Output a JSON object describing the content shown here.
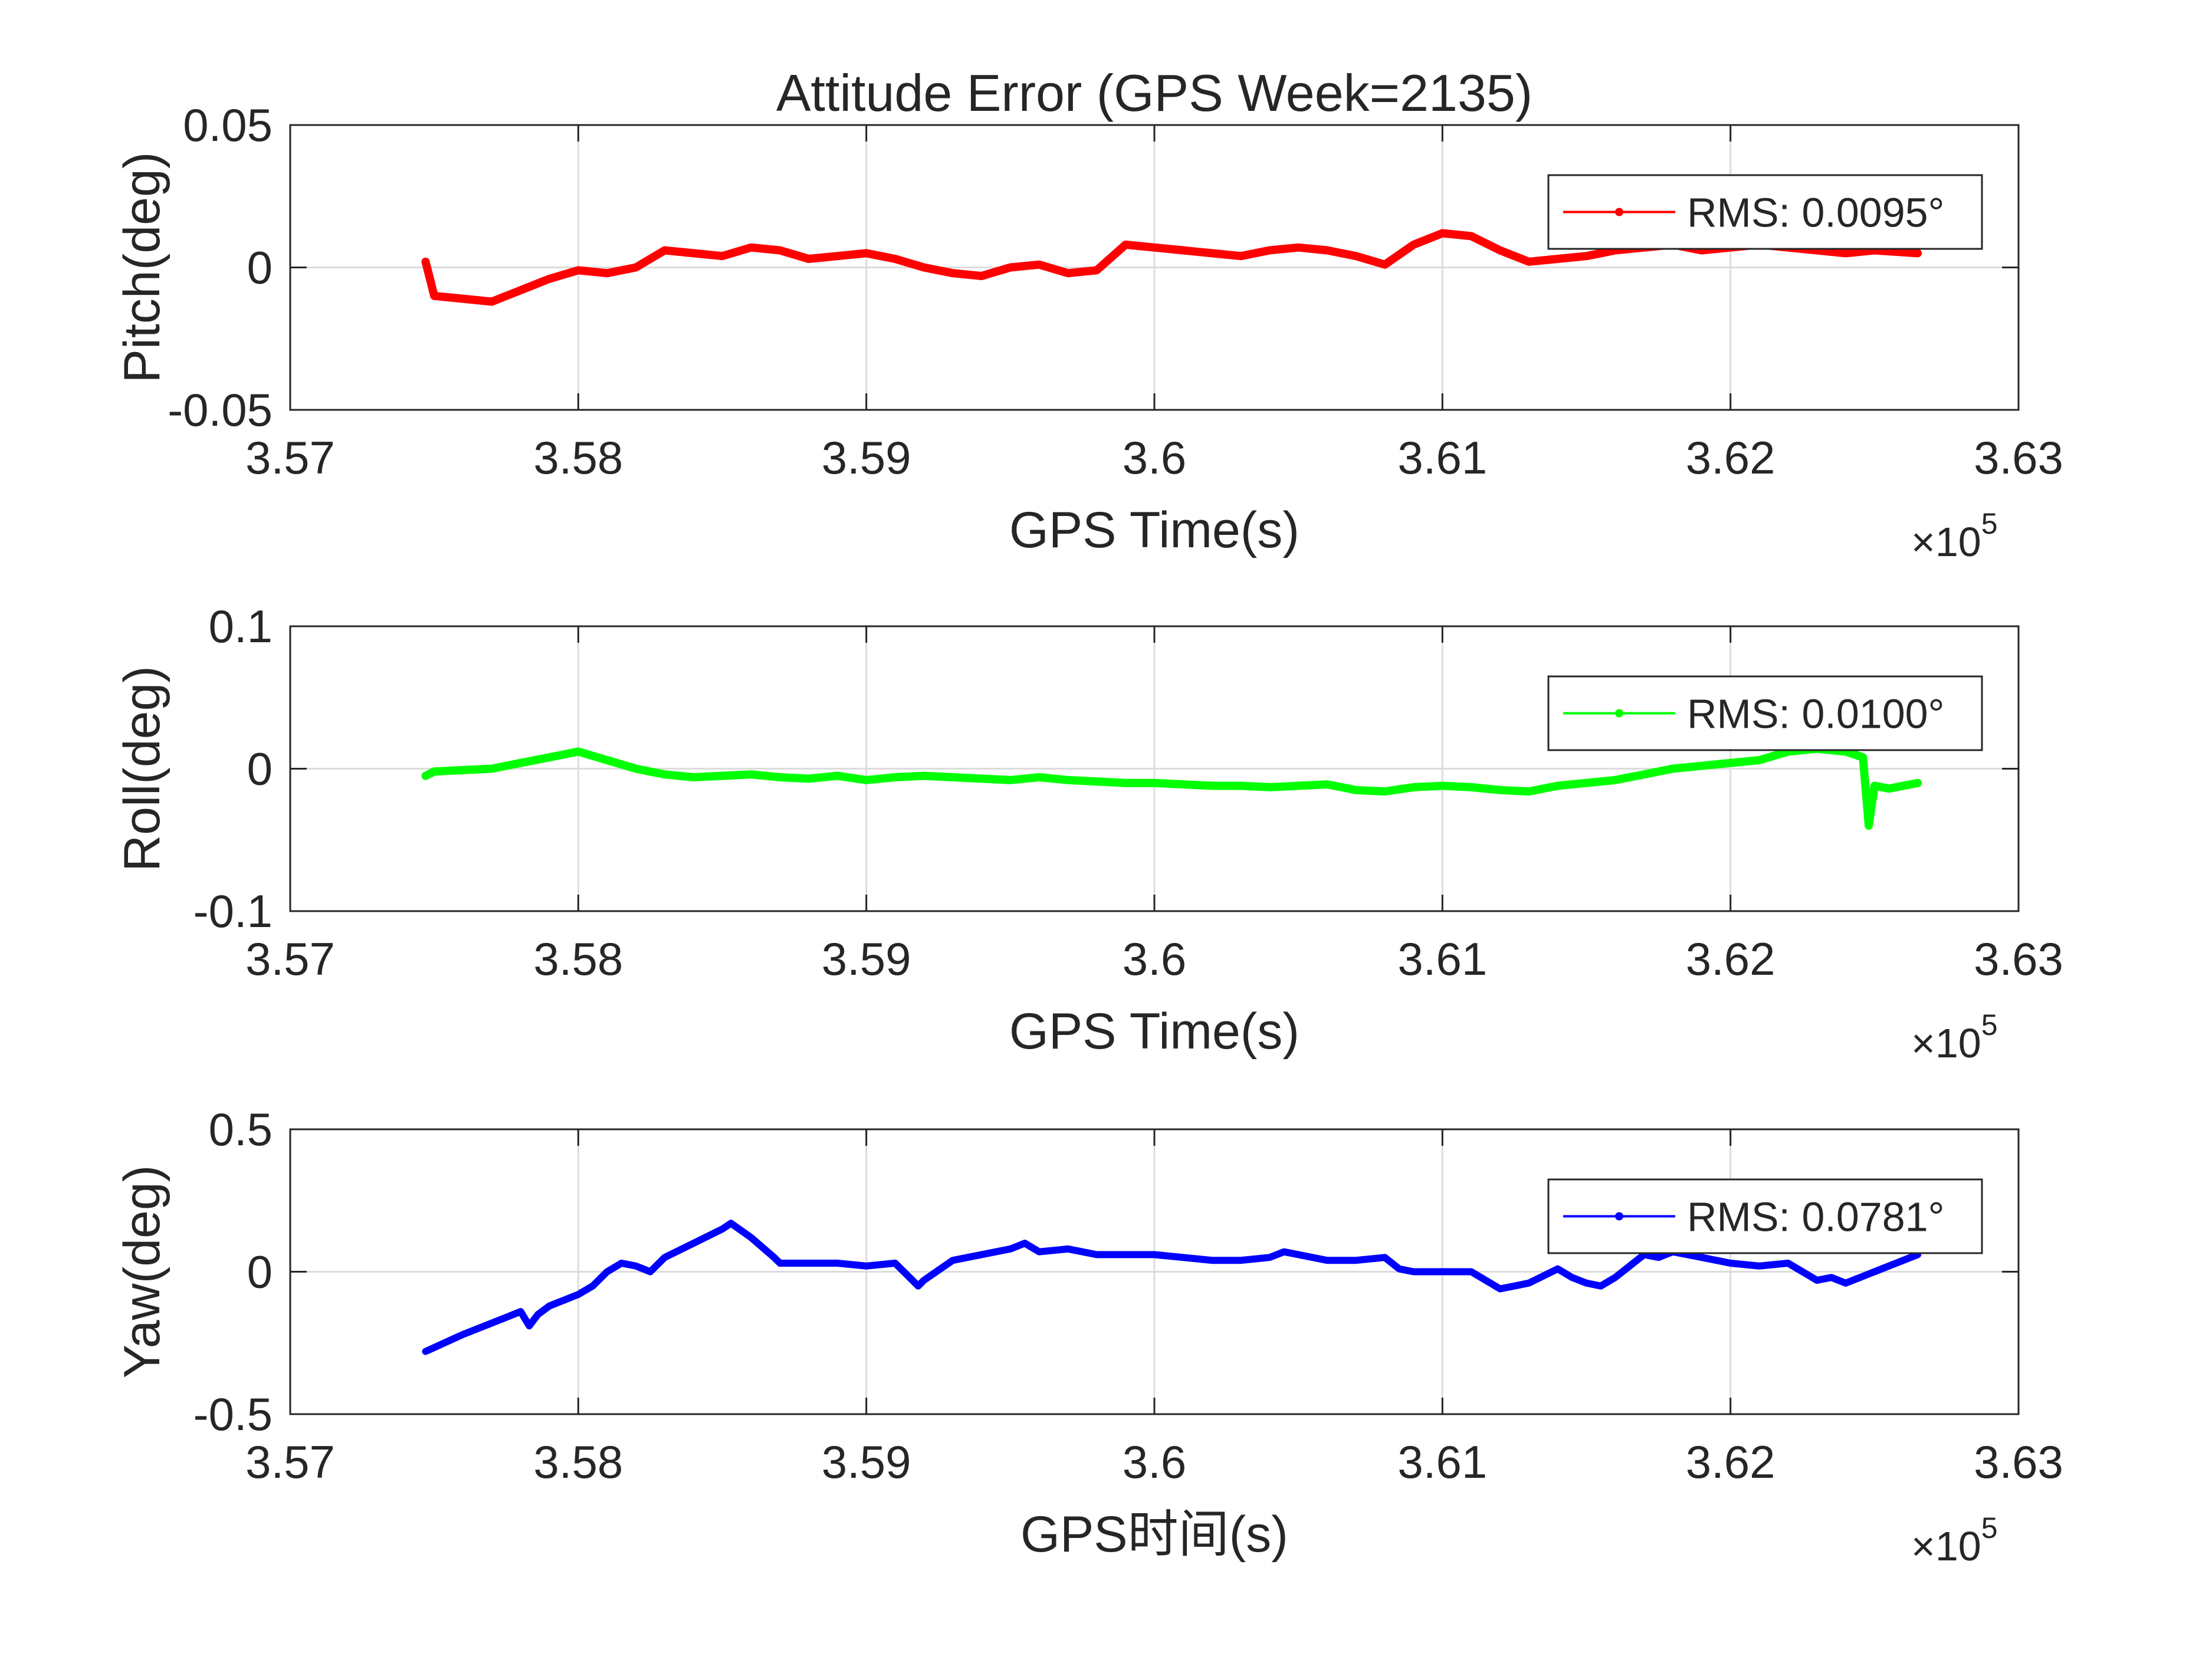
{
  "figure": {
    "title": "Attitude Error (GPS Week=2135)"
  },
  "chart_data": [
    {
      "type": "line",
      "name": "pitch",
      "ylabel": "Pitch(deg)",
      "xlabel": "GPS Time(s)",
      "xlim": [
        357000,
        363000
      ],
      "ylim": [
        -0.05,
        0.05
      ],
      "x_ticks": [
        357000,
        358000,
        359000,
        360000,
        361000,
        362000,
        363000
      ],
      "x_tick_labels": [
        "3.57",
        "3.58",
        "3.59",
        "3.6",
        "3.61",
        "3.62",
        "3.63"
      ],
      "y_ticks": [
        -0.05,
        0,
        0.05
      ],
      "y_tick_labels": [
        "-0.05",
        "0",
        "0.05"
      ],
      "x_exponent_base": "×10",
      "x_exponent_power": "5",
      "grid": true,
      "legend": {
        "text": "RMS: 0.0095°",
        "position": "top-right"
      },
      "color": "#ff0000",
      "series": [
        {
          "x": [
            357470,
            357500,
            357600,
            357700,
            357800,
            357900,
            358000,
            358100,
            358200,
            358300,
            358400,
            358500,
            358600,
            358700,
            358800,
            358900,
            359000,
            359100,
            359200,
            359300,
            359400,
            359500,
            359600,
            359700,
            359800,
            359900,
            360000,
            360100,
            360200,
            360300,
            360400,
            360500,
            360600,
            360700,
            360800,
            360900,
            361000,
            361100,
            361200,
            361300,
            361400,
            361500,
            361600,
            361700,
            361800,
            361900,
            362000,
            362100,
            362200,
            362300,
            362400,
            362500,
            362650
          ],
          "y": [
            0.002,
            -0.01,
            -0.011,
            -0.012,
            -0.008,
            -0.004,
            -0.001,
            -0.002,
            0.0,
            0.006,
            0.005,
            0.004,
            0.007,
            0.006,
            0.003,
            0.004,
            0.005,
            0.003,
            0.0,
            -0.002,
            -0.003,
            0.0,
            0.001,
            -0.002,
            -0.001,
            0.008,
            0.007,
            0.006,
            0.005,
            0.004,
            0.006,
            0.007,
            0.006,
            0.004,
            0.001,
            0.008,
            0.012,
            0.011,
            0.006,
            0.002,
            0.003,
            0.004,
            0.006,
            0.007,
            0.008,
            0.006,
            0.007,
            0.008,
            0.007,
            0.006,
            0.005,
            0.006,
            0.005
          ]
        }
      ]
    },
    {
      "type": "line",
      "name": "roll",
      "ylabel": "Roll(deg)",
      "xlabel": "GPS Time(s)",
      "xlim": [
        357000,
        363000
      ],
      "ylim": [
        -0.1,
        0.1
      ],
      "x_ticks": [
        357000,
        358000,
        359000,
        360000,
        361000,
        362000,
        363000
      ],
      "x_tick_labels": [
        "3.57",
        "3.58",
        "3.59",
        "3.6",
        "3.61",
        "3.62",
        "3.63"
      ],
      "y_ticks": [
        -0.1,
        0,
        0.1
      ],
      "y_tick_labels": [
        "-0.1",
        "0",
        "0.1"
      ],
      "x_exponent_base": "×10",
      "x_exponent_power": "5",
      "grid": true,
      "legend": {
        "text": "RMS: 0.0100°",
        "position": "top-right"
      },
      "color": "#00ff00",
      "series": [
        {
          "x": [
            357470,
            357500,
            357600,
            357700,
            357800,
            357900,
            358000,
            358100,
            358200,
            358300,
            358400,
            358500,
            358600,
            358700,
            358800,
            358900,
            359000,
            359100,
            359200,
            359300,
            359400,
            359500,
            359600,
            359700,
            359800,
            359900,
            360000,
            360100,
            360200,
            360300,
            360400,
            360500,
            360600,
            360700,
            360800,
            360900,
            361000,
            361100,
            361200,
            361300,
            361400,
            361500,
            361600,
            361700,
            361800,
            361900,
            362000,
            362100,
            362200,
            362300,
            362400,
            362460,
            362480,
            362500,
            362550,
            362650
          ],
          "y": [
            -0.005,
            -0.002,
            -0.001,
            0.0,
            0.004,
            0.008,
            0.012,
            0.006,
            0.0,
            -0.004,
            -0.006,
            -0.005,
            -0.004,
            -0.006,
            -0.007,
            -0.005,
            -0.008,
            -0.006,
            -0.005,
            -0.006,
            -0.007,
            -0.008,
            -0.006,
            -0.008,
            -0.009,
            -0.01,
            -0.01,
            -0.011,
            -0.012,
            -0.012,
            -0.013,
            -0.012,
            -0.011,
            -0.015,
            -0.016,
            -0.013,
            -0.012,
            -0.013,
            -0.015,
            -0.016,
            -0.012,
            -0.01,
            -0.008,
            -0.004,
            0.0,
            0.002,
            0.004,
            0.006,
            0.012,
            0.014,
            0.012,
            0.008,
            -0.04,
            -0.012,
            -0.014,
            -0.01
          ]
        }
      ]
    },
    {
      "type": "line",
      "name": "yaw",
      "ylabel": "Yaw(deg)",
      "xlabel": "GPS时间(s)",
      "xlim": [
        357000,
        363000
      ],
      "ylim": [
        -0.5,
        0.5
      ],
      "x_ticks": [
        357000,
        358000,
        359000,
        360000,
        361000,
        362000,
        363000
      ],
      "x_tick_labels": [
        "3.57",
        "3.58",
        "3.59",
        "3.6",
        "3.61",
        "3.62",
        "3.63"
      ],
      "y_ticks": [
        -0.5,
        0,
        0.5
      ],
      "y_tick_labels": [
        "-0.5",
        "0",
        "0.5"
      ],
      "x_exponent_base": "×10",
      "x_exponent_power": "5",
      "grid": true,
      "legend": {
        "text": "RMS: 0.0781°",
        "position": "top-right"
      },
      "color": "#0000ff",
      "series": [
        {
          "x": [
            357470,
            357600,
            357750,
            357800,
            357830,
            357860,
            357900,
            357950,
            358000,
            358050,
            358100,
            358150,
            358200,
            358250,
            358300,
            358400,
            358500,
            358530,
            358600,
            358680,
            358700,
            358800,
            358900,
            359000,
            359100,
            359180,
            359200,
            359300,
            359400,
            359500,
            359550,
            359600,
            359700,
            359800,
            359900,
            360000,
            360100,
            360200,
            360300,
            360400,
            360450,
            360500,
            360600,
            360700,
            360800,
            360850,
            360900,
            361000,
            361100,
            361150,
            361200,
            361250,
            361300,
            361400,
            361450,
            361500,
            361550,
            361600,
            361700,
            361750,
            361800,
            361900,
            362000,
            362100,
            362200,
            362300,
            362350,
            362400,
            362450,
            362500,
            362650
          ],
          "y": [
            -0.28,
            -0.22,
            -0.16,
            -0.14,
            -0.19,
            -0.15,
            -0.12,
            -0.1,
            -0.08,
            -0.05,
            0.0,
            0.03,
            0.02,
            0.0,
            0.05,
            0.1,
            0.15,
            0.17,
            0.12,
            0.05,
            0.03,
            0.03,
            0.03,
            0.02,
            0.03,
            -0.05,
            -0.03,
            0.04,
            0.06,
            0.08,
            0.1,
            0.07,
            0.08,
            0.06,
            0.06,
            0.06,
            0.05,
            0.04,
            0.04,
            0.05,
            0.07,
            0.06,
            0.04,
            0.04,
            0.05,
            0.01,
            0.0,
            0.0,
            0.0,
            -0.03,
            -0.06,
            -0.05,
            -0.04,
            0.01,
            -0.02,
            -0.04,
            -0.05,
            -0.02,
            0.06,
            0.05,
            0.07,
            0.05,
            0.03,
            0.02,
            0.03,
            -0.03,
            -0.02,
            -0.04,
            -0.02,
            0.0,
            0.06
          ]
        }
      ]
    }
  ]
}
